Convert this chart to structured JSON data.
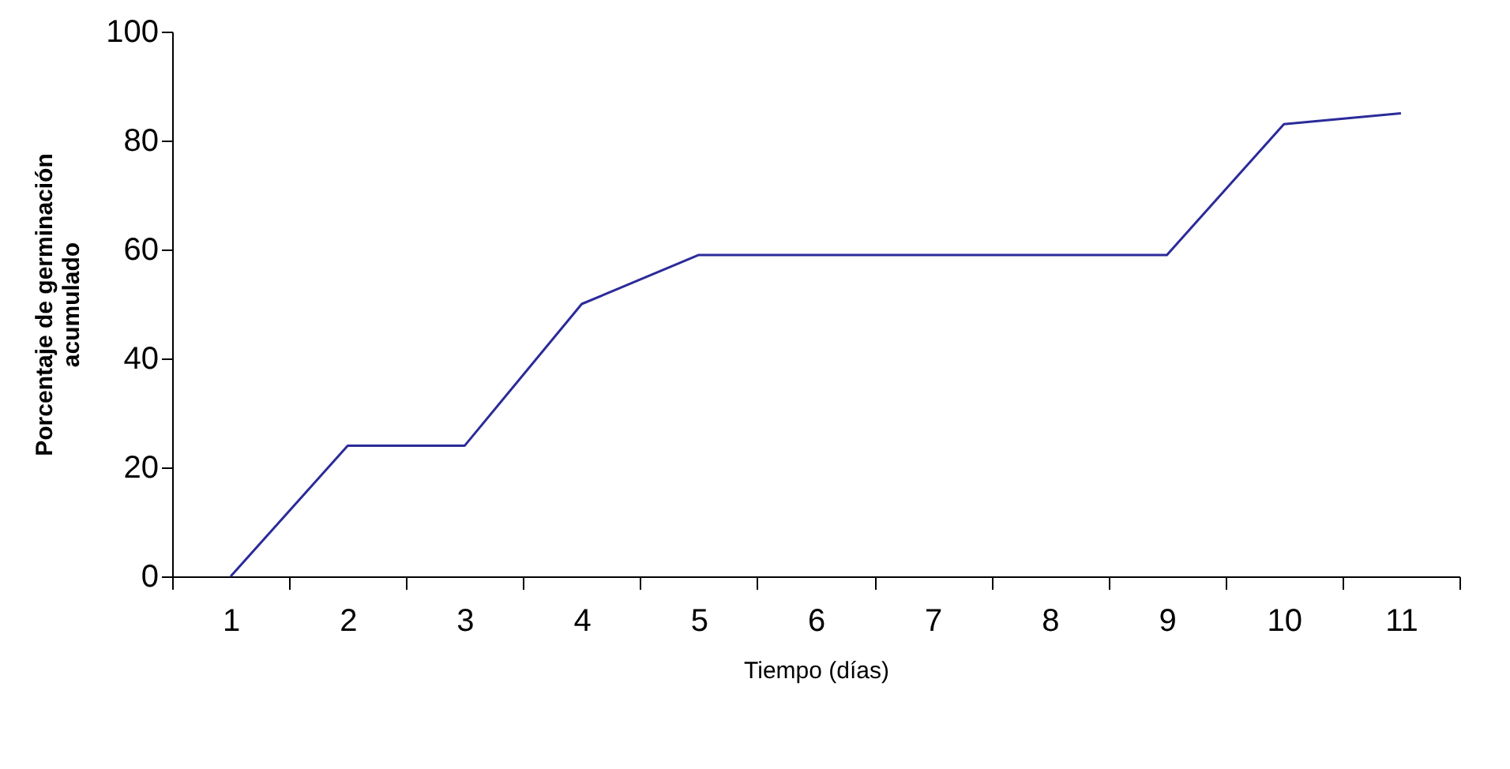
{
  "chart_data": {
    "type": "line",
    "xlabel": "Tiempo (días)",
    "ylabel": "Porcentaje de germinación\nacumulado",
    "categories": [
      "1",
      "2",
      "3",
      "4",
      "5",
      "6",
      "7",
      "8",
      "9",
      "10",
      "11"
    ],
    "series": [
      {
        "color": "#2b2b9a",
        "values": [
          0,
          24,
          24,
          50,
          59,
          59,
          59,
          59,
          59,
          83,
          85
        ]
      }
    ],
    "ylim": [
      0,
      100
    ],
    "yticks": [
      0,
      20,
      40,
      60,
      80,
      100
    ],
    "grid": false,
    "marker": "none",
    "line_style": "solid"
  }
}
